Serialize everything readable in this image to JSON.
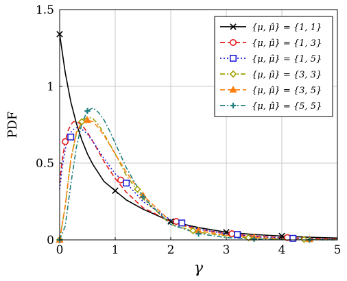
{
  "chart_data": {
    "type": "line",
    "xlabel": "γ",
    "ylabel": "PDF",
    "xlim": [
      0,
      5
    ],
    "ylim": [
      0,
      1.5
    ],
    "x_ticks": [
      "0",
      "1",
      "2",
      "3",
      "4",
      "5"
    ],
    "y_ticks": [
      "0",
      "0.5",
      "1",
      "1.5"
    ],
    "grid": true,
    "legend_position": "top-right",
    "series": [
      {
        "name": "{μ, μ̂} = {1, 1}",
        "color": "#000000",
        "dash": "solid",
        "marker": "x",
        "x": [
          0,
          0.1,
          0.2,
          0.3,
          0.4,
          0.5,
          0.6,
          0.8,
          1.0,
          1.2,
          1.5,
          2.0,
          2.5,
          3.0,
          3.5,
          4.0,
          4.5,
          5.0
        ],
        "y": [
          1.34,
          1.09,
          0.9,
          0.76,
          0.65,
          0.56,
          0.49,
          0.38,
          0.32,
          0.26,
          0.2,
          0.12,
          0.08,
          0.05,
          0.035,
          0.025,
          0.017,
          0.012
        ],
        "marker_x": [
          0,
          1.0,
          2.0,
          3.0,
          4.0
        ],
        "marker_y": [
          1.34,
          0.32,
          0.12,
          0.05,
          0.025
        ]
      },
      {
        "name": "{μ, μ̂} = {1, 3}",
        "color": "#e41a1c",
        "dash": "dashed",
        "marker": "o",
        "x": [
          0,
          0.05,
          0.1,
          0.15,
          0.2,
          0.25,
          0.3,
          0.4,
          0.5,
          0.6,
          0.8,
          1.0,
          1.2,
          1.5,
          2.0,
          2.5,
          3.0,
          3.5,
          4.0,
          4.5,
          5.0
        ],
        "y": [
          0.37,
          0.53,
          0.64,
          0.71,
          0.75,
          0.77,
          0.77,
          0.75,
          0.7,
          0.64,
          0.51,
          0.4,
          0.31,
          0.21,
          0.12,
          0.07,
          0.04,
          0.025,
          0.015,
          0.01,
          0.005
        ],
        "marker_x": [
          0.1,
          1.1,
          2.1,
          3.1,
          4.1
        ],
        "marker_y": [
          0.64,
          0.39,
          0.12,
          0.04,
          0.015
        ]
      },
      {
        "name": "{μ, μ̂} = {1, 5}",
        "color": "#1f1fd6",
        "dash": "dotted",
        "marker": "square",
        "x": [
          0,
          0.05,
          0.1,
          0.15,
          0.2,
          0.25,
          0.3,
          0.35,
          0.4,
          0.5,
          0.6,
          0.8,
          1.0,
          1.2,
          1.5,
          2.0,
          2.5,
          3.0,
          3.5,
          4.0,
          4.5,
          5.0
        ],
        "y": [
          0.33,
          0.48,
          0.59,
          0.66,
          0.7,
          0.72,
          0.73,
          0.73,
          0.72,
          0.69,
          0.64,
          0.53,
          0.43,
          0.37,
          0.25,
          0.13,
          0.07,
          0.04,
          0.02,
          0.012,
          0.007,
          0.004
        ],
        "marker_x": [
          0.2,
          1.2,
          2.2,
          3.2,
          4.2
        ],
        "marker_y": [
          0.67,
          0.37,
          0.11,
          0.035,
          0.01
        ]
      },
      {
        "name": "{μ, μ̂} = {3, 3}",
        "color": "#a0a000",
        "dash": "dashdot",
        "marker": "diamond",
        "x": [
          0,
          0.1,
          0.2,
          0.3,
          0.4,
          0.5,
          0.6,
          0.7,
          0.8,
          1.0,
          1.2,
          1.5,
          2.0,
          2.5,
          3.0,
          3.5,
          4.0,
          4.5,
          5.0
        ],
        "y": [
          0,
          0.22,
          0.52,
          0.69,
          0.77,
          0.8,
          0.79,
          0.75,
          0.69,
          0.56,
          0.42,
          0.27,
          0.1,
          0.05,
          0.025,
          0.01,
          0.005,
          0.003,
          0.001
        ],
        "marker_x": [
          0,
          0.4,
          1.4,
          2.4,
          3.4,
          4.4
        ],
        "marker_y": [
          0,
          0.77,
          0.33,
          0.06,
          0.014,
          0.003
        ]
      },
      {
        "name": "{μ, μ̂} = {3, 5}",
        "color": "#ff7f0e",
        "dash": "dashed",
        "marker": "triangle",
        "x": [
          0,
          0.1,
          0.2,
          0.3,
          0.4,
          0.5,
          0.6,
          0.7,
          0.8,
          1.0,
          1.2,
          1.5,
          2.0,
          2.5,
          3.0,
          3.5,
          4.0,
          4.5,
          5.0
        ],
        "y": [
          0,
          0.22,
          0.52,
          0.7,
          0.77,
          0.78,
          0.77,
          0.73,
          0.68,
          0.56,
          0.44,
          0.29,
          0.12,
          0.06,
          0.03,
          0.015,
          0.007,
          0.004,
          0.002
        ],
        "marker_x": [
          0,
          0.5,
          1.5,
          2.5,
          3.5,
          4.5
        ],
        "marker_y": [
          0,
          0.78,
          0.29,
          0.06,
          0.015,
          0.004
        ]
      },
      {
        "name": "{μ, μ̂} = {5, 5}",
        "color": "#1f7f7f",
        "dash": "dashdot",
        "marker": "plus",
        "x": [
          0,
          0.1,
          0.2,
          0.3,
          0.4,
          0.5,
          0.6,
          0.7,
          0.8,
          0.9,
          1.0,
          1.2,
          1.5,
          2.0,
          2.5,
          3.0,
          3.5,
          4.0,
          4.5,
          5.0
        ],
        "y": [
          0,
          0.09,
          0.36,
          0.6,
          0.76,
          0.84,
          0.86,
          0.83,
          0.78,
          0.71,
          0.63,
          0.47,
          0.28,
          0.1,
          0.04,
          0.015,
          0.006,
          0.002,
          0.001,
          0
        ],
        "marker_x": [
          0,
          0.5,
          1.5,
          2.5,
          3.5,
          4.5
        ],
        "marker_y": [
          0,
          0.84,
          0.28,
          0.04,
          0.006,
          0.001
        ]
      }
    ]
  }
}
